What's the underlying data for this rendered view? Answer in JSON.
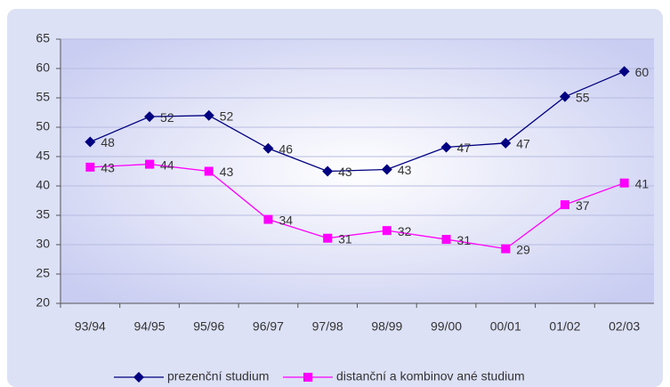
{
  "chart_data": {
    "type": "line",
    "categories": [
      "93/94",
      "94/95",
      "95/96",
      "96/97",
      "97/98",
      "98/99",
      "99/00",
      "00/01",
      "01/02",
      "02/03"
    ],
    "series": [
      {
        "name": "prezenční studium",
        "color": "#000080",
        "marker": "diamond",
        "values": [
          47.5,
          51.8,
          52,
          46.4,
          42.5,
          42.8,
          46.6,
          47.3,
          55.2,
          59.5
        ],
        "value_labels": [
          "48",
          "52",
          "52",
          "46",
          "43",
          "43",
          "47",
          "47",
          "55",
          "60"
        ]
      },
      {
        "name": "distanční a kombinov ané studium",
        "color": "#ff00ff",
        "marker": "square",
        "values": [
          43.2,
          43.7,
          42.5,
          34.3,
          31.1,
          32.4,
          30.9,
          29.3,
          36.8,
          40.5
        ],
        "value_labels": [
          "43",
          "44",
          "43",
          "34",
          "31",
          "32",
          "31",
          "29",
          "37",
          "41"
        ]
      }
    ],
    "ylim": [
      20,
      65
    ],
    "yticks": [
      20,
      25,
      30,
      35,
      40,
      45,
      50,
      55,
      60,
      65
    ],
    "grid": true,
    "legend": "bottom"
  }
}
